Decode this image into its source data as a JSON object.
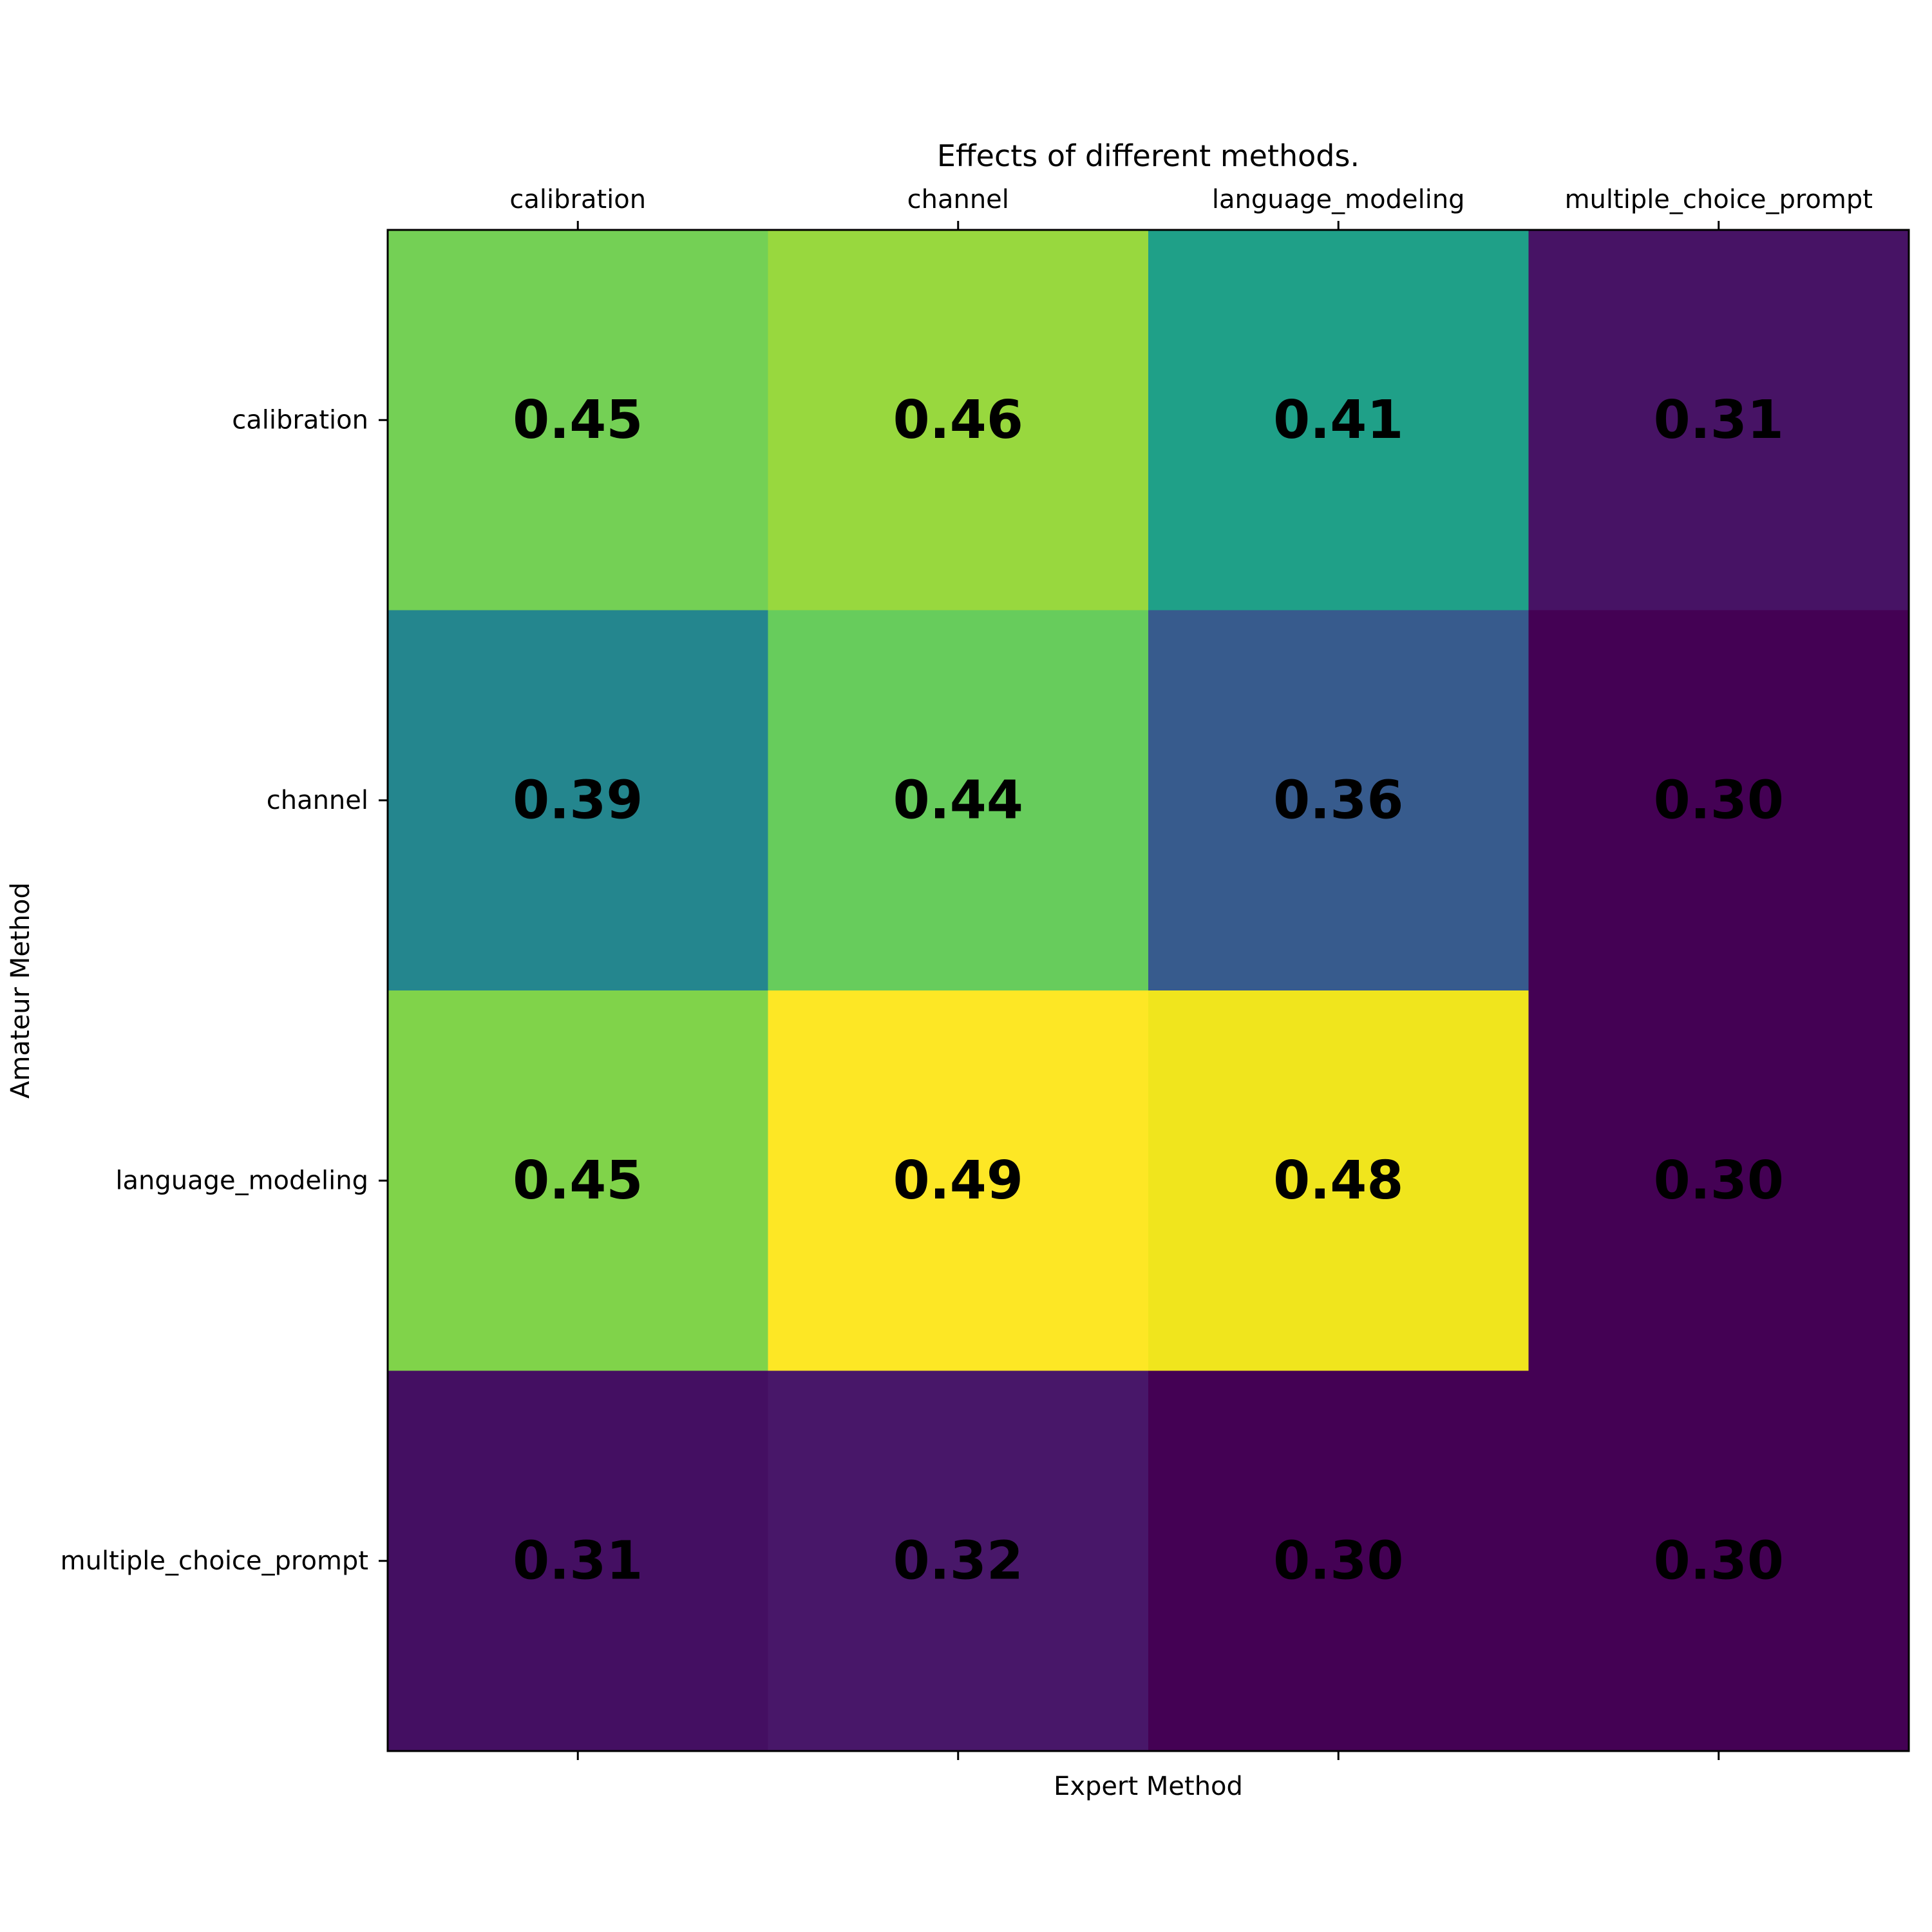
{
  "chart_data": {
    "type": "heatmap",
    "title": "Effects of different methods.",
    "xlabel": "Expert Method",
    "ylabel": "Amateur Method",
    "x_categories": [
      "calibration",
      "channel",
      "language_modeling",
      "multiple_choice_prompt"
    ],
    "y_categories": [
      "calibration",
      "channel",
      "language_modeling",
      "multiple_choice_prompt"
    ],
    "values": [
      [
        0.45,
        0.46,
        0.41,
        0.31
      ],
      [
        0.39,
        0.44,
        0.36,
        0.3
      ],
      [
        0.45,
        0.49,
        0.48,
        0.3
      ],
      [
        0.31,
        0.32,
        0.3,
        0.3
      ]
    ],
    "value_labels": [
      [
        "0.45",
        "0.46",
        "0.41",
        "0.31"
      ],
      [
        "0.39",
        "0.44",
        "0.36",
        "0.30"
      ],
      [
        "0.45",
        "0.49",
        "0.48",
        "0.30"
      ],
      [
        "0.31",
        "0.32",
        "0.30",
        "0.30"
      ]
    ],
    "cell_colors": [
      [
        "#74d055",
        "#98d83e",
        "#1fa088",
        "#471365"
      ],
      [
        "#24868e",
        "#67cc5c",
        "#375b8d",
        "#440154"
      ],
      [
        "#80d34a",
        "#fde725",
        "#f0e51d",
        "#440154"
      ],
      [
        "#440f62",
        "#481769",
        "#440154",
        "#440154"
      ]
    ],
    "colormap": "viridis",
    "x_ticks_position": "top",
    "grid": false,
    "legend": false
  }
}
